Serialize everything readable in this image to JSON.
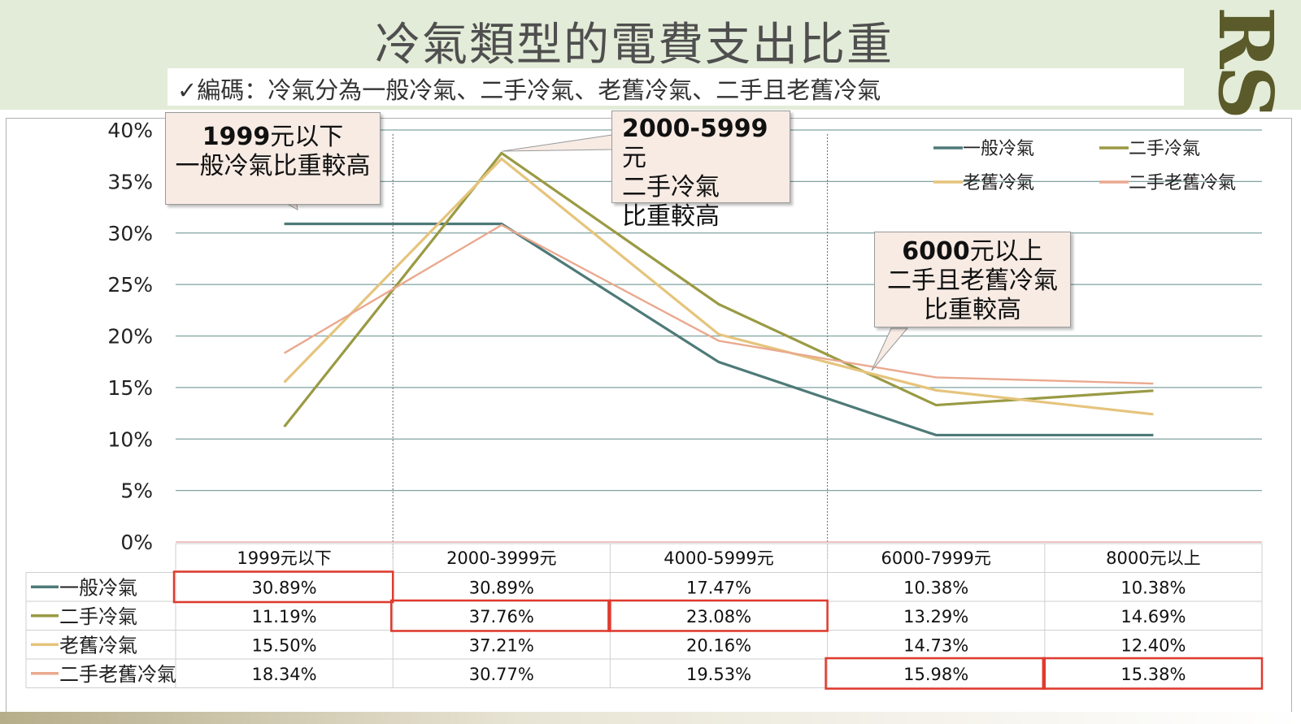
{
  "header": {
    "title": "冷氣類型的電費支出比重",
    "subtitle": "✓編碼：冷氣分為一般冷氣、二手冷氣、老舊冷氣、二手且老舊冷氣",
    "logo": "RSP"
  },
  "callouts": [
    {
      "bold": "1999",
      "line1_rest": "元以下",
      "line2": "一般冷氣比重較高",
      "line3": ""
    },
    {
      "bold": "2000-5999",
      "line1_rest": "元",
      "line2": "二手冷氣",
      "line3": "比重較高"
    },
    {
      "bold": "6000",
      "line1_rest": "元以上",
      "line2": "二手且老舊冷氣",
      "line3": "比重較高"
    }
  ],
  "chart_data": {
    "type": "line",
    "categories": [
      "1999元以下",
      "2000-3999元",
      "4000-5999元",
      "6000-7999元",
      "8000元以上"
    ],
    "series": [
      {
        "name": "一般冷氣",
        "values": [
          30.89,
          30.89,
          17.47,
          10.38,
          10.38
        ],
        "color": "#4e7a78",
        "labels": [
          "30.89%",
          "30.89%",
          "17.47%",
          "10.38%",
          "10.38%"
        ]
      },
      {
        "name": "二手冷氣",
        "values": [
          11.19,
          37.76,
          23.08,
          13.29,
          14.69
        ],
        "color": "#9a9a44",
        "labels": [
          "11.19%",
          "37.76%",
          "23.08%",
          "13.29%",
          "14.69%"
        ]
      },
      {
        "name": "老舊冷氣",
        "values": [
          15.5,
          37.21,
          20.16,
          14.73,
          12.4
        ],
        "color": "#e5c47c",
        "labels": [
          "15.50%",
          "37.21%",
          "20.16%",
          "14.73%",
          "12.40%"
        ]
      },
      {
        "name": "二手老舊冷氣",
        "values": [
          18.34,
          30.77,
          19.53,
          15.98,
          15.38
        ],
        "color": "#eaa98f",
        "labels": [
          "18.34%",
          "30.77%",
          "19.53%",
          "15.98%",
          "15.38%"
        ]
      }
    ],
    "ylim": [
      0,
      40
    ],
    "yticks": [
      "0%",
      "5%",
      "10%",
      "15%",
      "20%",
      "25%",
      "30%",
      "35%",
      "40%"
    ],
    "grid": true,
    "legend": "top-right",
    "data_table": true,
    "highlight_color": "#e03a2e",
    "highlights": [
      [
        0,
        0
      ],
      [
        1,
        1
      ],
      [
        1,
        2
      ],
      [
        3,
        3
      ],
      [
        3,
        4
      ]
    ]
  }
}
